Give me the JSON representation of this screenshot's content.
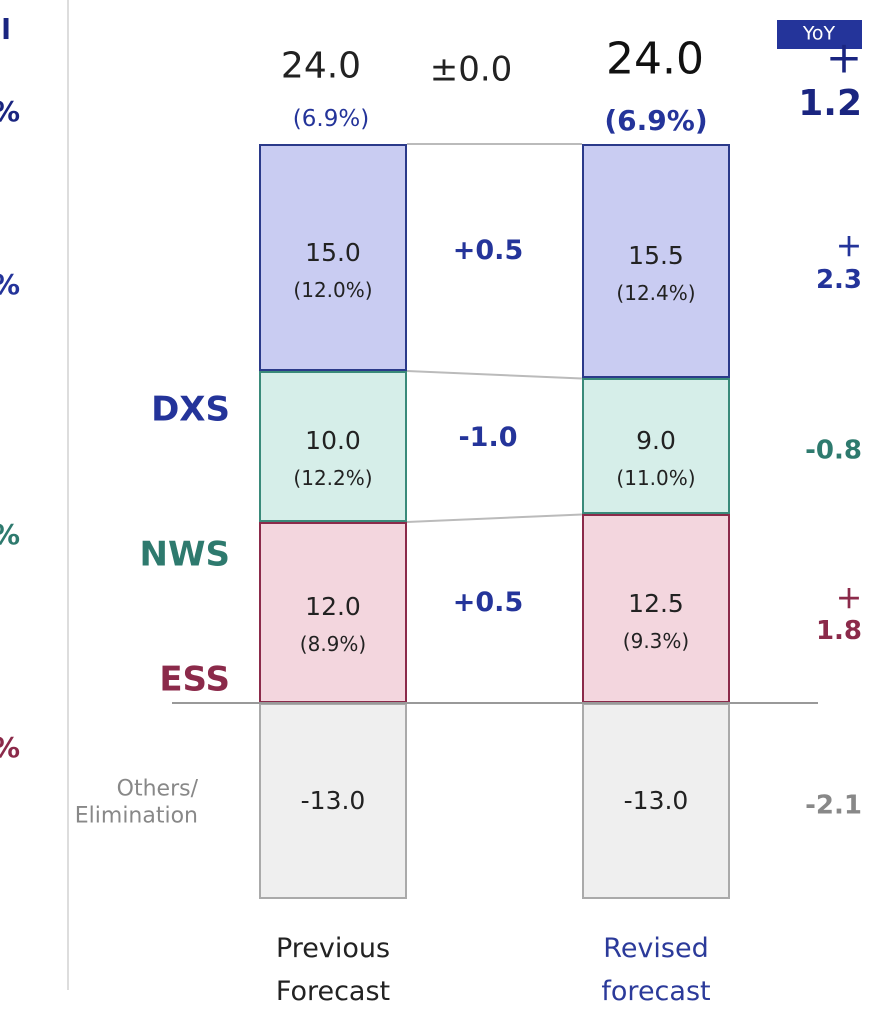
{
  "chart_data": {
    "type": "stacked_bar",
    "categories": [
      "Previous\nForecast",
      "Revised\nforecast"
    ],
    "category_colors": [
      "#222222",
      "#2b3a9a"
    ],
    "yoy_title": "YoY",
    "total": {
      "values": [
        24.0,
        24.0
      ],
      "value_labels": [
        "24.0",
        "24.0"
      ],
      "margins": [
        6.9,
        6.9
      ],
      "margin_labels": [
        "(6.9%)",
        "(6.9%)"
      ],
      "change": 0,
      "change_label": "±0.0",
      "yoy": 1.2,
      "yoy_label": "＋1.2"
    },
    "series": [
      {
        "name": "DXS",
        "color": "#c9ccf2",
        "border": "#2b3a8a",
        "text_color": "#24349a",
        "values": [
          15.0,
          15.5
        ],
        "value_labels": [
          "15.0",
          "15.5"
        ],
        "margins": [
          12.0,
          12.4
        ],
        "margin_labels": [
          "(12.0%)",
          "(12.4%)"
        ],
        "change": 0.5,
        "change_label": "+0.5",
        "yoy": 2.3,
        "yoy_label": "＋2.3"
      },
      {
        "name": "NWS",
        "color": "#d6eee9",
        "border": "#3a8a7a",
        "text_color": "#2e7a6e",
        "values": [
          10.0,
          9.0
        ],
        "value_labels": [
          "10.0",
          "9.0"
        ],
        "margins": [
          12.2,
          11.0
        ],
        "margin_labels": [
          "(12.2%)",
          "(11.0%)"
        ],
        "change": -1.0,
        "change_label": "-1.0",
        "yoy": -0.8,
        "yoy_label": "-0.8"
      },
      {
        "name": "ESS",
        "color": "#f3d6de",
        "border": "#8b2a4a",
        "text_color": "#8b2a4a",
        "values": [
          12.0,
          12.5
        ],
        "value_labels": [
          "12.0",
          "12.5"
        ],
        "margins": [
          8.9,
          9.3
        ],
        "margin_labels": [
          "(8.9%)",
          "(9.3%)"
        ],
        "change": 0.5,
        "change_label": "+0.5",
        "yoy": 1.8,
        "yoy_label": "＋1.8"
      },
      {
        "name": "Others/\nElimination",
        "color": "#efefef",
        "border": "#aaaaaa",
        "text_color": "#888888",
        "values": [
          -13.0,
          -13.0
        ],
        "value_labels": [
          "-13.0",
          "-13.0"
        ],
        "yoy": -2.1,
        "yoy_label": "-2.1"
      }
    ],
    "edge_fragments": [
      "l",
      "%",
      "%",
      "%",
      "%"
    ]
  }
}
